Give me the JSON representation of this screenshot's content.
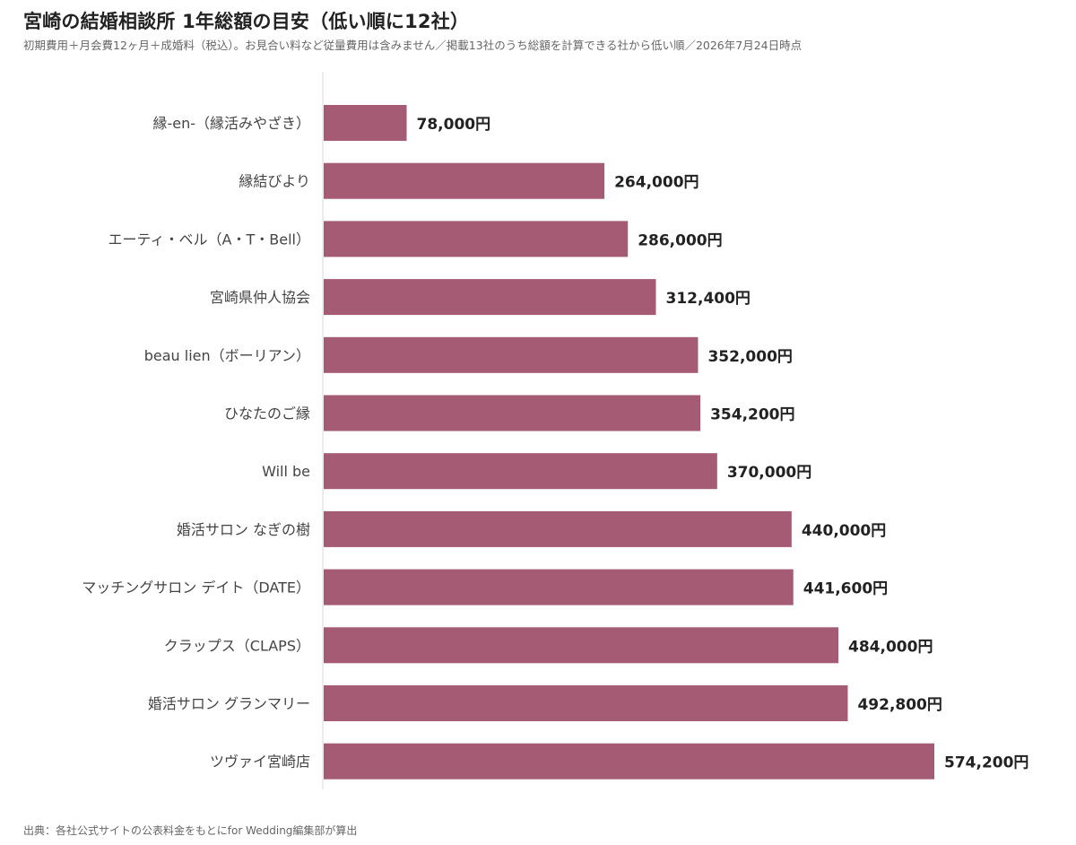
{
  "title": "宮崎の結婚相談所 1年総額の目安（低い順に12社）",
  "subtitle": "初期費用＋月会費12ヶ月＋成婚料（税込）。お見合い料など従量費用は含みません／掲載13社のうち総額を計算できる社から低い順／2026年7月24日時点",
  "source": "出典：各社公式サイトの公表料金をもとにfor Wedding編集部が算出",
  "colors": {
    "bar": "#a45b73",
    "axis": "#d9d9d9",
    "label": "#444444",
    "value": "#222222"
  },
  "chart_data": {
    "type": "bar",
    "orientation": "horizontal",
    "value_suffix": "円",
    "xlim": [
      0,
      574200
    ],
    "grid": false,
    "categories": [
      "縁-en-（縁活みやざき）",
      "縁結びより",
      "エーティ・ベル（A・T・Bell）",
      "宮崎県仲人協会",
      "beau lien（ボーリアン）",
      "ひなたのご縁",
      "Will be",
      "婚活サロン なぎの樹",
      "マッチングサロン デイト（DATE）",
      "クラップス（CLAPS）",
      "婚活サロン グランマリー",
      "ツヴァイ宮崎店"
    ],
    "values": [
      78000,
      264000,
      286000,
      312400,
      352000,
      354200,
      370000,
      440000,
      441600,
      484000,
      492800,
      574200
    ],
    "value_labels": [
      "78,000円",
      "264,000円",
      "286,000円",
      "312,400円",
      "352,000円",
      "354,200円",
      "370,000円",
      "440,000円",
      "441,600円",
      "484,000円",
      "492,800円",
      "574,200円"
    ]
  }
}
